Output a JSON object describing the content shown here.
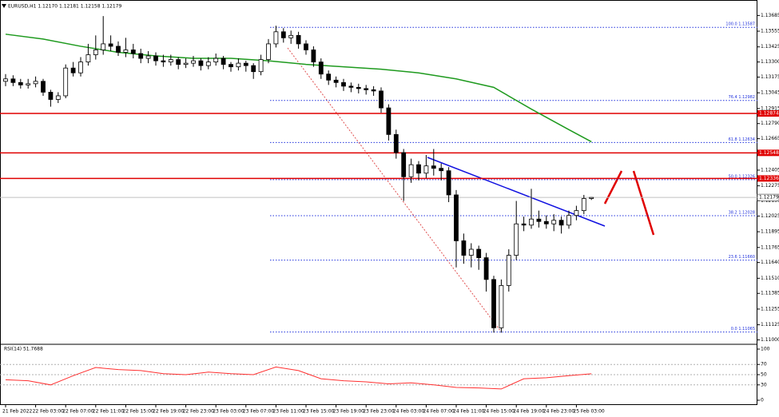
{
  "chart_data": {
    "type": "candlestick",
    "title": "EURUSD,H1  1.12170 1.12181 1.12158 1.12179",
    "categories": [
      "21 Feb 2022",
      null,
      null,
      null,
      "22 Feb 03:00",
      null,
      null,
      null,
      "22 Feb 07:00",
      null,
      null,
      null,
      "22 Feb 11:00",
      null,
      null,
      null,
      "22 Feb 15:00",
      null,
      null,
      null,
      "22 Feb 19:00",
      null,
      null,
      null,
      "22 Feb 23:00",
      null,
      null,
      null,
      "23 Feb 03:00",
      null,
      null,
      null,
      "23 Feb 07:00",
      null,
      null,
      null,
      "23 Feb 11:00",
      null,
      null,
      null,
      "23 Feb 15:00",
      null,
      null,
      null,
      "23 Feb 19:00",
      null,
      null,
      null,
      "23 Feb 23:00",
      null,
      null,
      null,
      "24 Feb 03:00",
      null,
      null,
      null,
      "24 Feb 07:00",
      null,
      null,
      null,
      "24 Feb 11:00",
      null,
      null,
      null,
      "24 Feb 15:00",
      null,
      null,
      null,
      "24 Feb 19:00",
      null,
      null,
      null,
      "24 Feb 23:00",
      null,
      null,
      null,
      "25 Feb 03:00",
      null,
      null
    ],
    "candles": [
      [
        1.1314,
        1.132,
        1.131,
        1.1316
      ],
      [
        1.1316,
        1.1319,
        1.131,
        1.1313
      ],
      [
        1.1313,
        1.1316,
        1.1308,
        1.1311
      ],
      [
        1.1311,
        1.1316,
        1.1308,
        1.1312
      ],
      [
        1.1312,
        1.1318,
        1.1309,
        1.1314
      ],
      [
        1.1314,
        1.1316,
        1.1302,
        1.1305
      ],
      [
        1.1305,
        1.1307,
        1.1293,
        1.1299
      ],
      [
        1.1299,
        1.1305,
        1.1296,
        1.1302
      ],
      [
        1.1302,
        1.1328,
        1.13,
        1.1325
      ],
      [
        1.1325,
        1.133,
        1.1318,
        1.1321
      ],
      [
        1.1321,
        1.1334,
        1.1318,
        1.133
      ],
      [
        1.133,
        1.1345,
        1.1327,
        1.1336
      ],
      [
        1.1336,
        1.1352,
        1.1332,
        1.134
      ],
      [
        1.134,
        1.1368,
        1.1336,
        1.1345
      ],
      [
        1.1345,
        1.1352,
        1.1339,
        1.1343
      ],
      [
        1.1343,
        1.1347,
        1.1335,
        1.1338
      ],
      [
        1.1338,
        1.135,
        1.1334,
        1.134
      ],
      [
        1.134,
        1.1345,
        1.1333,
        1.1337
      ],
      [
        1.1337,
        1.1341,
        1.1329,
        1.1333
      ],
      [
        1.1333,
        1.1339,
        1.1329,
        1.1335
      ],
      [
        1.1335,
        1.1338,
        1.1327,
        1.1331
      ],
      [
        1.1331,
        1.1336,
        1.1326,
        1.133
      ],
      [
        1.133,
        1.1336,
        1.1327,
        1.1332
      ],
      [
        1.1332,
        1.1334,
        1.1324,
        1.1328
      ],
      [
        1.1328,
        1.1333,
        1.1325,
        1.1329
      ],
      [
        1.1329,
        1.1335,
        1.1326,
        1.1331
      ],
      [
        1.1331,
        1.1333,
        1.1323,
        1.1327
      ],
      [
        1.1327,
        1.1334,
        1.1324,
        1.133
      ],
      [
        1.133,
        1.1337,
        1.1327,
        1.1333
      ],
      [
        1.1333,
        1.1335,
        1.1324,
        1.1328
      ],
      [
        1.1328,
        1.133,
        1.1322,
        1.1326
      ],
      [
        1.1326,
        1.1333,
        1.1323,
        1.1329
      ],
      [
        1.1329,
        1.1331,
        1.1322,
        1.1327
      ],
      [
        1.1327,
        1.1329,
        1.1316,
        1.1322
      ],
      [
        1.1322,
        1.1336,
        1.1319,
        1.1332
      ],
      [
        1.1332,
        1.1349,
        1.1329,
        1.1345
      ],
      [
        1.1345,
        1.136,
        1.1342,
        1.1355
      ],
      [
        1.1355,
        1.1358,
        1.1346,
        1.135
      ],
      [
        1.135,
        1.1356,
        1.1345,
        1.1352
      ],
      [
        1.1352,
        1.1355,
        1.1341,
        1.1345
      ],
      [
        1.1345,
        1.1348,
        1.1336,
        1.134
      ],
      [
        1.134,
        1.1343,
        1.1326,
        1.133
      ],
      [
        1.133,
        1.1333,
        1.1316,
        1.132
      ],
      [
        1.132,
        1.1323,
        1.1311,
        1.1315
      ],
      [
        1.1315,
        1.1318,
        1.1309,
        1.1313
      ],
      [
        1.1313,
        1.1316,
        1.1306,
        1.131
      ],
      [
        1.131,
        1.1313,
        1.1305,
        1.1309
      ],
      [
        1.1309,
        1.1312,
        1.1304,
        1.1308
      ],
      [
        1.1308,
        1.1311,
        1.1303,
        1.1307
      ],
      [
        1.1307,
        1.131,
        1.1302,
        1.1306
      ],
      [
        1.1306,
        1.1309,
        1.1288,
        1.1292
      ],
      [
        1.1292,
        1.1295,
        1.1265,
        1.127
      ],
      [
        1.127,
        1.1274,
        1.125,
        1.1255
      ],
      [
        1.1255,
        1.1258,
        1.1215,
        1.1235
      ],
      [
        1.1235,
        1.125,
        1.123,
        1.1245
      ],
      [
        1.1245,
        1.1248,
        1.1232,
        1.1238
      ],
      [
        1.1238,
        1.1253,
        1.1234,
        1.1244
      ],
      [
        1.1244,
        1.1258,
        1.1236,
        1.1242
      ],
      [
        1.1242,
        1.1246,
        1.1232,
        1.124
      ],
      [
        1.124,
        1.1243,
        1.1214,
        1.122
      ],
      [
        1.122,
        1.1224,
        1.116,
        1.1182
      ],
      [
        1.1182,
        1.1188,
        1.1163,
        1.117
      ],
      [
        1.117,
        1.118,
        1.116,
        1.1175
      ],
      [
        1.1175,
        1.1178,
        1.1158,
        1.1168
      ],
      [
        1.1168,
        1.1172,
        1.114,
        1.115
      ],
      [
        1.115,
        1.1153,
        1.1106,
        1.111
      ],
      [
        1.111,
        1.115,
        1.1106,
        1.1145
      ],
      [
        1.1145,
        1.1175,
        1.114,
        1.117
      ],
      [
        1.117,
        1.1215,
        1.1166,
        1.1196
      ],
      [
        1.1196,
        1.1202,
        1.119,
        1.1195
      ],
      [
        1.1195,
        1.1225,
        1.1192,
        1.12
      ],
      [
        1.12,
        1.1207,
        1.1193,
        1.1198
      ],
      [
        1.1198,
        1.1203,
        1.1192,
        1.1196
      ],
      [
        1.1196,
        1.1204,
        1.119,
        1.1199
      ],
      [
        1.1199,
        1.1202,
        1.1188,
        1.1195
      ],
      [
        1.1195,
        1.1207,
        1.1192,
        1.1203
      ],
      [
        1.1203,
        1.1211,
        1.1199,
        1.1207
      ],
      [
        1.1207,
        1.122,
        1.1204,
        1.1217
      ],
      [
        1.1217,
        1.12181,
        1.12158,
        1.12179
      ]
    ],
    "up_color": "#ffffff",
    "down_color": "#000000",
    "ylim": [
      1.1097,
      1.1378
    ],
    "yticks": [
      1.13685,
      1.13555,
      1.13425,
      {
        "value": 1.133,
        "label": "1.13300"
      },
      1.13175,
      1.13045,
      1.12915,
      {
        "value": 1.1279,
        "label": "1.12790"
      },
      1.12665,
      1.12535,
      1.12405,
      1.12275,
      {
        "value": 1.1215,
        "label": "1.12150"
      },
      1.12025,
      1.11895,
      1.11765,
      {
        "value": 1.1164,
        "label": "1.11640"
      },
      {
        "value": 1.1151,
        "label": "1.11510"
      },
      1.11385,
      1.11255,
      1.11125,
      {
        "value": 1.11,
        "label": "1.11000"
      }
    ],
    "ma": {
      "color": "#1e9a1e",
      "x": [
        0,
        5,
        10,
        15,
        20,
        25,
        30,
        35,
        40,
        45,
        50,
        55,
        60,
        65,
        70,
        75,
        78
      ],
      "values": [
        1.1353,
        1.1349,
        1.1343,
        1.1338,
        1.1335,
        1.1333,
        1.1333,
        1.1331,
        1.1328,
        1.1326,
        1.1324,
        1.1321,
        1.1316,
        1.1309,
        1.1291,
        1.1274,
        1.1264
      ]
    },
    "levels": {
      "color": "#e00000",
      "values": [
        1.12874,
        1.12548,
        1.12336
      ]
    },
    "current_price": 1.12179,
    "fibonacci": {
      "color": "#2233dd",
      "levels": [
        {
          "value": 1.13587,
          "label": "100.0 1.13587"
        },
        {
          "value": 1.12982,
          "label": "76.4 1.12982"
        },
        {
          "value": 1.12634,
          "label": "61.8 1.12634"
        },
        {
          "value": 1.12326,
          "label": "50.0 1.12326"
        },
        {
          "value": 1.12028,
          "label": "38.2 1.12028"
        },
        {
          "value": 1.1166,
          "label": "23.6 1.11660"
        },
        {
          "value": 1.11065,
          "label": "0.0 1.11065"
        }
      ]
    },
    "rsi": {
      "title": "RSI(14) 51.7688",
      "color": "#ff3030",
      "ylim": [
        0,
        100
      ],
      "yticks": [
        100,
        70,
        50,
        30,
        0
      ],
      "x": [
        0,
        3,
        6,
        9,
        12,
        15,
        18,
        21,
        24,
        27,
        30,
        33,
        36,
        39,
        42,
        45,
        48,
        51,
        54,
        57,
        60,
        63,
        66,
        69,
        72,
        75,
        78
      ],
      "values": [
        40,
        38,
        30,
        48,
        64,
        60,
        58,
        52,
        50,
        55,
        52,
        50,
        65,
        58,
        42,
        38,
        36,
        32,
        34,
        30,
        25,
        24,
        22,
        42,
        44,
        48,
        51.7688
      ]
    }
  }
}
